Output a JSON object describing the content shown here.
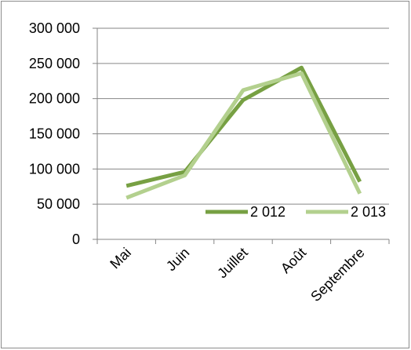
{
  "chart_data": {
    "type": "line",
    "categories": [
      "Mai",
      "Juin",
      "Juillet",
      "Août",
      "Septembre"
    ],
    "series": [
      {
        "name": "2 012",
        "values": [
          76000,
          96000,
          198000,
          244000,
          82000
        ],
        "color": "#77a043"
      },
      {
        "name": "2 013",
        "values": [
          59000,
          91000,
          212000,
          236000,
          65000
        ],
        "color": "#b3d08e"
      }
    ],
    "ylim": [
      0,
      300000
    ],
    "yticks": [
      "0",
      "50 000",
      "100 000",
      "150 000",
      "200 000",
      "250 000",
      "300 000"
    ],
    "grid": true,
    "legend_position": "bottom-right",
    "axis_color": "#868686",
    "grid_color": "#868686"
  }
}
